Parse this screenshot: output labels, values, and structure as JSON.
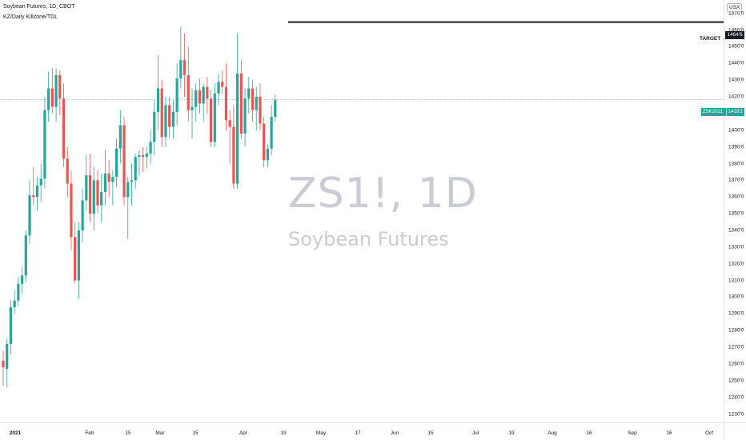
{
  "legend": {
    "title": "Soybean Futures, 1D, CBOT",
    "indicator": "KZ/Daily Killzone/TDL"
  },
  "watermark": {
    "symbol": "ZS1!, 1D",
    "name": "Soybean Futures"
  },
  "currency": "USX",
  "target": {
    "label": "TARGET",
    "price_label": "1464'6",
    "price": 1464.75
  },
  "last_price": {
    "symbol": "ZSK2021",
    "price_label": "1418'2",
    "price": 1418.25
  },
  "colors": {
    "up": "#26a69a",
    "down": "#ef5350",
    "target_line": "#131722",
    "last_price_line": "#26a69a"
  },
  "chart_data": {
    "type": "candlestick",
    "title": "Soybean Futures, 1D, CBOT",
    "xlabel": "",
    "ylabel": "",
    "ylim": [
      1225,
      1478
    ],
    "grid": false,
    "price_ticks": [
      "1230'0",
      "1240'0",
      "1250'0",
      "1260'0",
      "1270'0",
      "1280'0",
      "1290'0",
      "1300'0",
      "1310'0",
      "1320'0",
      "1330'0",
      "1340'0",
      "1350'0",
      "1360'0",
      "1370'0",
      "1380'0",
      "1390'0",
      "1400'0",
      "1410'0",
      "1420'0",
      "1430'0",
      "1440'0",
      "1450'0",
      "1460'0",
      "1470'0"
    ],
    "time_ticks": [
      "2021",
      "Feb",
      "15",
      "Mar",
      "15",
      "Apr",
      "19",
      "May",
      "17",
      "Jun",
      "15",
      "Jul",
      "19",
      "Aug",
      "16",
      "Sep",
      "16",
      "Oct"
    ],
    "ohlc": [
      {
        "o": 1262,
        "h": 1268,
        "l": 1247,
        "c": 1258
      },
      {
        "o": 1257,
        "h": 1275,
        "l": 1246,
        "c": 1272
      },
      {
        "o": 1272,
        "h": 1298,
        "l": 1266,
        "c": 1294
      },
      {
        "o": 1294,
        "h": 1304,
        "l": 1290,
        "c": 1298
      },
      {
        "o": 1298,
        "h": 1312,
        "l": 1295,
        "c": 1308
      },
      {
        "o": 1308,
        "h": 1318,
        "l": 1302,
        "c": 1313
      },
      {
        "o": 1313,
        "h": 1340,
        "l": 1309,
        "c": 1337
      },
      {
        "o": 1337,
        "h": 1370,
        "l": 1332,
        "c": 1361
      },
      {
        "o": 1361,
        "h": 1378,
        "l": 1355,
        "c": 1360
      },
      {
        "o": 1360,
        "h": 1372,
        "l": 1352,
        "c": 1367
      },
      {
        "o": 1367,
        "h": 1380,
        "l": 1357,
        "c": 1371
      },
      {
        "o": 1371,
        "h": 1420,
        "l": 1365,
        "c": 1412
      },
      {
        "o": 1412,
        "h": 1435,
        "l": 1405,
        "c": 1425
      },
      {
        "o": 1425,
        "h": 1437,
        "l": 1410,
        "c": 1414
      },
      {
        "o": 1414,
        "h": 1437,
        "l": 1405,
        "c": 1433
      },
      {
        "o": 1433,
        "h": 1436,
        "l": 1409,
        "c": 1419
      },
      {
        "o": 1419,
        "h": 1428,
        "l": 1378,
        "c": 1383
      },
      {
        "o": 1383,
        "h": 1390,
        "l": 1360,
        "c": 1368
      },
      {
        "o": 1368,
        "h": 1376,
        "l": 1328,
        "c": 1336
      },
      {
        "o": 1336,
        "h": 1345,
        "l": 1308,
        "c": 1310
      },
      {
        "o": 1310,
        "h": 1345,
        "l": 1299,
        "c": 1340
      },
      {
        "o": 1340,
        "h": 1365,
        "l": 1333,
        "c": 1358
      },
      {
        "o": 1358,
        "h": 1385,
        "l": 1352,
        "c": 1373
      },
      {
        "o": 1373,
        "h": 1386,
        "l": 1345,
        "c": 1350
      },
      {
        "o": 1350,
        "h": 1378,
        "l": 1340,
        "c": 1370
      },
      {
        "o": 1370,
        "h": 1376,
        "l": 1350,
        "c": 1355
      },
      {
        "o": 1355,
        "h": 1374,
        "l": 1345,
        "c": 1363
      },
      {
        "o": 1363,
        "h": 1388,
        "l": 1355,
        "c": 1374
      },
      {
        "o": 1374,
        "h": 1382,
        "l": 1360,
        "c": 1369
      },
      {
        "o": 1369,
        "h": 1376,
        "l": 1355,
        "c": 1372
      },
      {
        "o": 1372,
        "h": 1395,
        "l": 1366,
        "c": 1389
      },
      {
        "o": 1389,
        "h": 1412,
        "l": 1380,
        "c": 1403
      },
      {
        "o": 1403,
        "h": 1408,
        "l": 1355,
        "c": 1360
      },
      {
        "o": 1360,
        "h": 1372,
        "l": 1335,
        "c": 1369
      },
      {
        "o": 1369,
        "h": 1380,
        "l": 1355,
        "c": 1370
      },
      {
        "o": 1370,
        "h": 1386,
        "l": 1365,
        "c": 1384
      },
      {
        "o": 1384,
        "h": 1388,
        "l": 1373,
        "c": 1385
      },
      {
        "o": 1385,
        "h": 1390,
        "l": 1375,
        "c": 1384
      },
      {
        "o": 1384,
        "h": 1390,
        "l": 1377,
        "c": 1386
      },
      {
        "o": 1386,
        "h": 1400,
        "l": 1380,
        "c": 1393
      },
      {
        "o": 1393,
        "h": 1418,
        "l": 1385,
        "c": 1411
      },
      {
        "o": 1411,
        "h": 1445,
        "l": 1400,
        "c": 1425
      },
      {
        "o": 1425,
        "h": 1430,
        "l": 1390,
        "c": 1396
      },
      {
        "o": 1396,
        "h": 1420,
        "l": 1390,
        "c": 1415
      },
      {
        "o": 1415,
        "h": 1420,
        "l": 1395,
        "c": 1402
      },
      {
        "o": 1402,
        "h": 1418,
        "l": 1395,
        "c": 1411
      },
      {
        "o": 1411,
        "h": 1440,
        "l": 1403,
        "c": 1431
      },
      {
        "o": 1431,
        "h": 1462,
        "l": 1425,
        "c": 1442
      },
      {
        "o": 1442,
        "h": 1458,
        "l": 1420,
        "c": 1433
      },
      {
        "o": 1433,
        "h": 1450,
        "l": 1405,
        "c": 1412
      },
      {
        "o": 1412,
        "h": 1425,
        "l": 1395,
        "c": 1414
      },
      {
        "o": 1414,
        "h": 1428,
        "l": 1405,
        "c": 1424
      },
      {
        "o": 1424,
        "h": 1431,
        "l": 1410,
        "c": 1416
      },
      {
        "o": 1416,
        "h": 1428,
        "l": 1405,
        "c": 1426
      },
      {
        "o": 1426,
        "h": 1432,
        "l": 1410,
        "c": 1419
      },
      {
        "o": 1419,
        "h": 1424,
        "l": 1390,
        "c": 1393
      },
      {
        "o": 1393,
        "h": 1428,
        "l": 1390,
        "c": 1422
      },
      {
        "o": 1422,
        "h": 1434,
        "l": 1415,
        "c": 1429
      },
      {
        "o": 1429,
        "h": 1436,
        "l": 1422,
        "c": 1426
      },
      {
        "o": 1426,
        "h": 1440,
        "l": 1400,
        "c": 1406
      },
      {
        "o": 1406,
        "h": 1412,
        "l": 1380,
        "c": 1402
      },
      {
        "o": 1402,
        "h": 1415,
        "l": 1365,
        "c": 1368
      },
      {
        "o": 1368,
        "h": 1458,
        "l": 1365,
        "c": 1434
      },
      {
        "o": 1434,
        "h": 1442,
        "l": 1395,
        "c": 1398
      },
      {
        "o": 1398,
        "h": 1425,
        "l": 1390,
        "c": 1419
      },
      {
        "o": 1419,
        "h": 1432,
        "l": 1410,
        "c": 1425
      },
      {
        "o": 1425,
        "h": 1430,
        "l": 1405,
        "c": 1412
      },
      {
        "o": 1412,
        "h": 1426,
        "l": 1400,
        "c": 1420
      },
      {
        "o": 1420,
        "h": 1428,
        "l": 1400,
        "c": 1404
      },
      {
        "o": 1404,
        "h": 1408,
        "l": 1378,
        "c": 1382
      },
      {
        "o": 1382,
        "h": 1392,
        "l": 1378,
        "c": 1389
      },
      {
        "o": 1389,
        "h": 1415,
        "l": 1385,
        "c": 1408
      },
      {
        "o": 1408,
        "h": 1421,
        "l": 1405,
        "c": 1418.25
      }
    ]
  }
}
